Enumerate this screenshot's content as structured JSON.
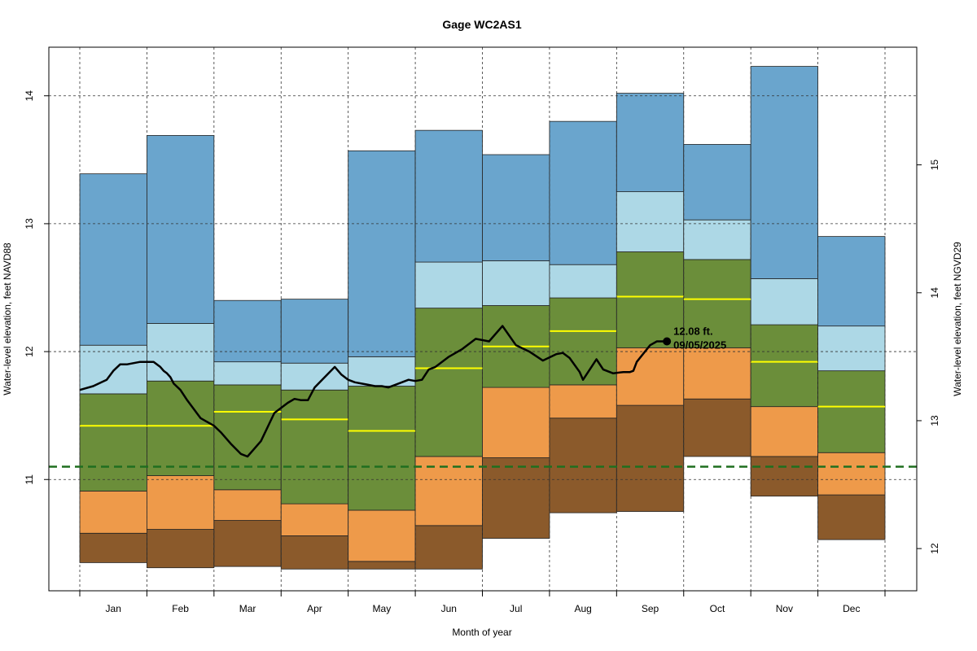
{
  "chart_data": {
    "type": "area",
    "title": "Gage WC2AS1",
    "xlabel": "Month of year",
    "ylabel_left": "Water-level elevation, feet NAVD88",
    "ylabel_right": "Water-level elevation, feet NGVD29",
    "categories": [
      "Jan",
      "Feb",
      "Mar",
      "Apr",
      "May",
      "Jun",
      "Jul",
      "Aug",
      "Sep",
      "Oct",
      "Nov",
      "Dec"
    ],
    "ylim": [
      10.13,
      14.38
    ],
    "yticks_left": [
      "11",
      "12",
      "13",
      "14"
    ],
    "yticks_right": [
      "12",
      "13",
      "14",
      "15"
    ],
    "right_axis_offset": 1.54,
    "grid": true,
    "colors": {
      "band1": "#8B5A2B",
      "band2": "#EE9A4A",
      "band3": "#6B8E3A",
      "band4": "#ADD8E6",
      "band5": "#6AA5CD",
      "median": "#FFFF00",
      "current": "#000000",
      "reference": "#1F6F1F"
    },
    "month_bounds": [
      [
        0.5,
        1.5
      ],
      [
        1.5,
        2.5
      ],
      [
        2.5,
        3.5
      ],
      [
        3.5,
        4.5
      ],
      [
        4.5,
        5.5
      ],
      [
        5.5,
        6.5
      ],
      [
        6.5,
        7.5
      ],
      [
        7.5,
        8.5
      ],
      [
        8.5,
        9.5
      ],
      [
        9.5,
        10.5
      ],
      [
        10.5,
        11.5
      ],
      [
        11.5,
        12.5
      ]
    ],
    "percentile_levels": {
      "min": [
        10.35,
        10.31,
        10.32,
        10.3,
        10.3,
        10.3,
        10.54,
        10.74,
        10.75,
        11.18,
        10.87,
        10.53
      ],
      "p10": [
        10.58,
        10.61,
        10.68,
        10.56,
        10.36,
        10.64,
        11.17,
        11.48,
        11.58,
        11.63,
        11.18,
        10.88
      ],
      "p25": [
        10.91,
        11.03,
        10.92,
        10.81,
        10.76,
        11.18,
        11.72,
        11.74,
        12.03,
        12.03,
        11.57,
        11.21
      ],
      "p75": [
        11.67,
        11.77,
        11.74,
        11.7,
        11.73,
        12.34,
        12.36,
        12.42,
        12.78,
        12.72,
        12.21,
        11.85
      ],
      "p90": [
        12.05,
        12.22,
        11.92,
        11.91,
        11.96,
        12.7,
        12.71,
        12.68,
        13.25,
        13.03,
        12.57,
        12.2
      ],
      "max": [
        13.39,
        13.69,
        12.4,
        12.41,
        13.57,
        13.73,
        13.54,
        13.8,
        14.02,
        13.62,
        14.23,
        12.9
      ]
    },
    "median": [
      11.42,
      11.42,
      11.53,
      11.47,
      11.38,
      11.87,
      12.04,
      12.16,
      12.43,
      12.41,
      11.92,
      11.57
    ],
    "reference_line": 11.1,
    "current_series": {
      "x": [
        0.5,
        0.7,
        0.9,
        1.0,
        1.1,
        1.2,
        1.4,
        1.6,
        1.7,
        1.75,
        1.8,
        1.85,
        1.9,
        2.0,
        2.1,
        2.2,
        2.3,
        2.5,
        2.6,
        2.75,
        2.9,
        3.0,
        3.2,
        3.4,
        3.6,
        3.7,
        3.8,
        3.9,
        4.0,
        4.15,
        4.3,
        4.4,
        4.5,
        4.6,
        4.7,
        4.8,
        4.9,
        5.0,
        5.1,
        5.2,
        5.3,
        5.4,
        5.5,
        5.6,
        5.7,
        5.8,
        6.0,
        6.2,
        6.4,
        6.6,
        6.8,
        7.0,
        7.2,
        7.4,
        7.6,
        7.7,
        7.8,
        7.95,
        8.0,
        8.1,
        8.2,
        8.3,
        8.45,
        8.6,
        8.7,
        8.75,
        8.8,
        9.0,
        9.1,
        9.2,
        9.25
      ],
      "y": [
        11.7,
        11.73,
        11.78,
        11.85,
        11.9,
        11.9,
        11.92,
        11.92,
        11.88,
        11.85,
        11.83,
        11.8,
        11.75,
        11.7,
        11.62,
        11.55,
        11.48,
        11.42,
        11.37,
        11.28,
        11.2,
        11.18,
        11.3,
        11.52,
        11.6,
        11.63,
        11.62,
        11.62,
        11.72,
        11.8,
        11.88,
        11.82,
        11.78,
        11.76,
        11.75,
        11.74,
        11.73,
        11.73,
        11.72,
        11.74,
        11.76,
        11.78,
        11.77,
        11.78,
        11.86,
        11.88,
        11.96,
        12.02,
        12.1,
        12.08,
        12.2,
        12.05,
        12.0,
        11.93,
        11.98,
        11.99,
        11.95,
        11.84,
        11.78,
        11.86,
        11.94,
        11.86,
        11.83,
        11.84,
        11.84,
        11.85,
        11.92,
        12.05,
        12.08,
        12.08,
        12.08
      ],
      "last_value_label": "12.08 ft.",
      "last_date_label": "09/05/2025"
    }
  }
}
